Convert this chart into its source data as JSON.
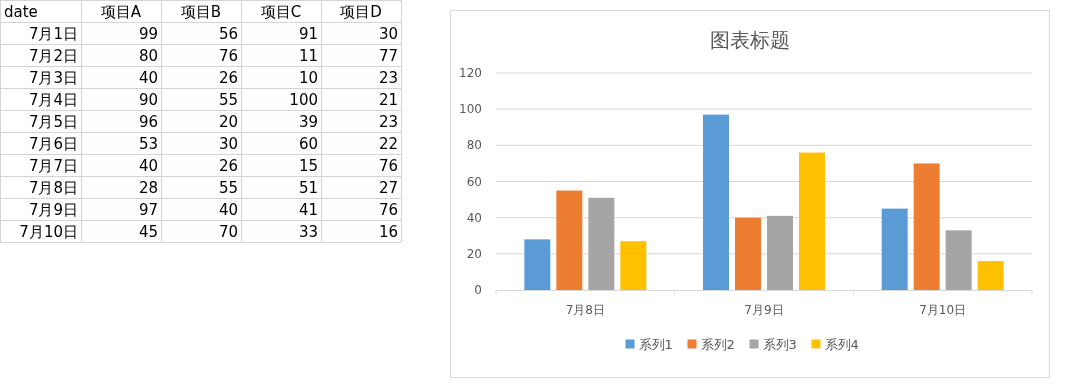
{
  "chart_data": [
    {
      "type": "heatmap",
      "ylabel": "date",
      "categories": [
        "项目A",
        "项目B",
        "项目C",
        "项目D"
      ],
      "y_categories": [
        "7月1日",
        "7月2日",
        "7月3日",
        "7月4日",
        "7月5日",
        "7月6日",
        "7月7日",
        "7月8日",
        "7月9日",
        "7月10日"
      ],
      "cells": [
        [
          99,
          56,
          91,
          30
        ],
        [
          80,
          76,
          11,
          77
        ],
        [
          40,
          26,
          10,
          23
        ],
        [
          90,
          55,
          100,
          21
        ],
        [
          96,
          20,
          39,
          23
        ],
        [
          53,
          30,
          60,
          22
        ],
        [
          40,
          26,
          15,
          76
        ],
        [
          28,
          55,
          51,
          27
        ],
        [
          97,
          40,
          41,
          76
        ],
        [
          45,
          70,
          33,
          16
        ]
      ],
      "data_labels": true
    },
    {
      "type": "bar",
      "title": "图表标题",
      "categories": [
        "7月8日",
        "7月9日",
        "7月10日"
      ],
      "series": [
        {
          "name": "系列1",
          "color": "#5b9bd5",
          "values": [
            28,
            97,
            45
          ]
        },
        {
          "name": "系列2",
          "color": "#ed7d31",
          "values": [
            55,
            40,
            70
          ]
        },
        {
          "name": "系列3",
          "color": "#a5a5a5",
          "values": [
            51,
            41,
            33
          ]
        },
        {
          "name": "系列4",
          "color": "#ffc000",
          "values": [
            27,
            76,
            16
          ]
        }
      ],
      "ylim": [
        0,
        120
      ],
      "yticks": [
        0,
        20,
        40,
        60,
        80,
        100,
        120
      ],
      "grid": "y",
      "legend": "bottom"
    }
  ]
}
